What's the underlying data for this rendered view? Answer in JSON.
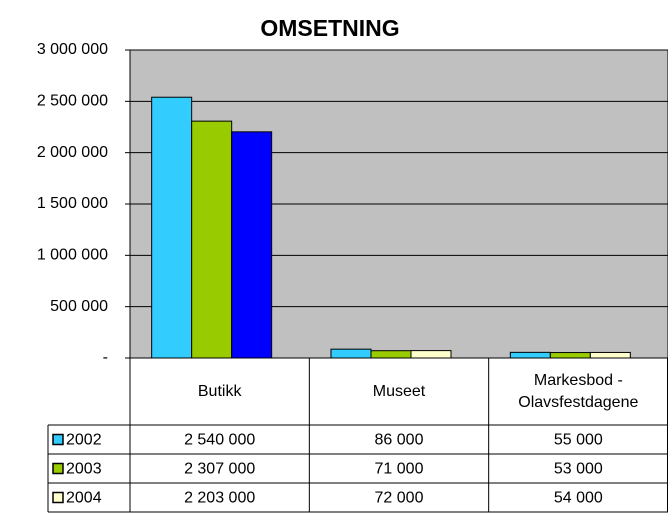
{
  "chart_data": {
    "type": "bar",
    "title": "OMSETNING",
    "categories": [
      "Butikk",
      "Museet",
      "Markesbod - Olavsfestdagene"
    ],
    "series": [
      {
        "name": "2002",
        "color": "#33ccff",
        "values": [
          2540000,
          86000,
          55000
        ],
        "value_labels": [
          "2 540 000",
          "86 000",
          "55 000"
        ]
      },
      {
        "name": "2003",
        "color": "#99cc00",
        "values": [
          2307000,
          71000,
          53000
        ],
        "value_labels": [
          "2 307 000",
          "71 000",
          "53 000"
        ]
      },
      {
        "name": "2004",
        "color": "#ffffcc",
        "point_colors": [
          "#0000ff",
          "#ffffcc",
          "#ffffcc"
        ],
        "values": [
          2203000,
          72000,
          54000
        ],
        "value_labels": [
          "2 203 000",
          "72 000",
          "54 000"
        ]
      }
    ],
    "ylim": [
      0,
      3000000
    ],
    "yticks": [
      {
        "value": 0,
        "label": "-"
      },
      {
        "value": 500000,
        "label": "500 000"
      },
      {
        "value": 1000000,
        "label": "1 000 000"
      },
      {
        "value": 1500000,
        "label": "1 500 000"
      },
      {
        "value": 2000000,
        "label": "2 000 000"
      },
      {
        "value": 2500000,
        "label": "2 500 000"
      },
      {
        "value": 3000000,
        "label": "3 000 000"
      }
    ],
    "grid": true,
    "plot_background": "#c0c0c0"
  }
}
